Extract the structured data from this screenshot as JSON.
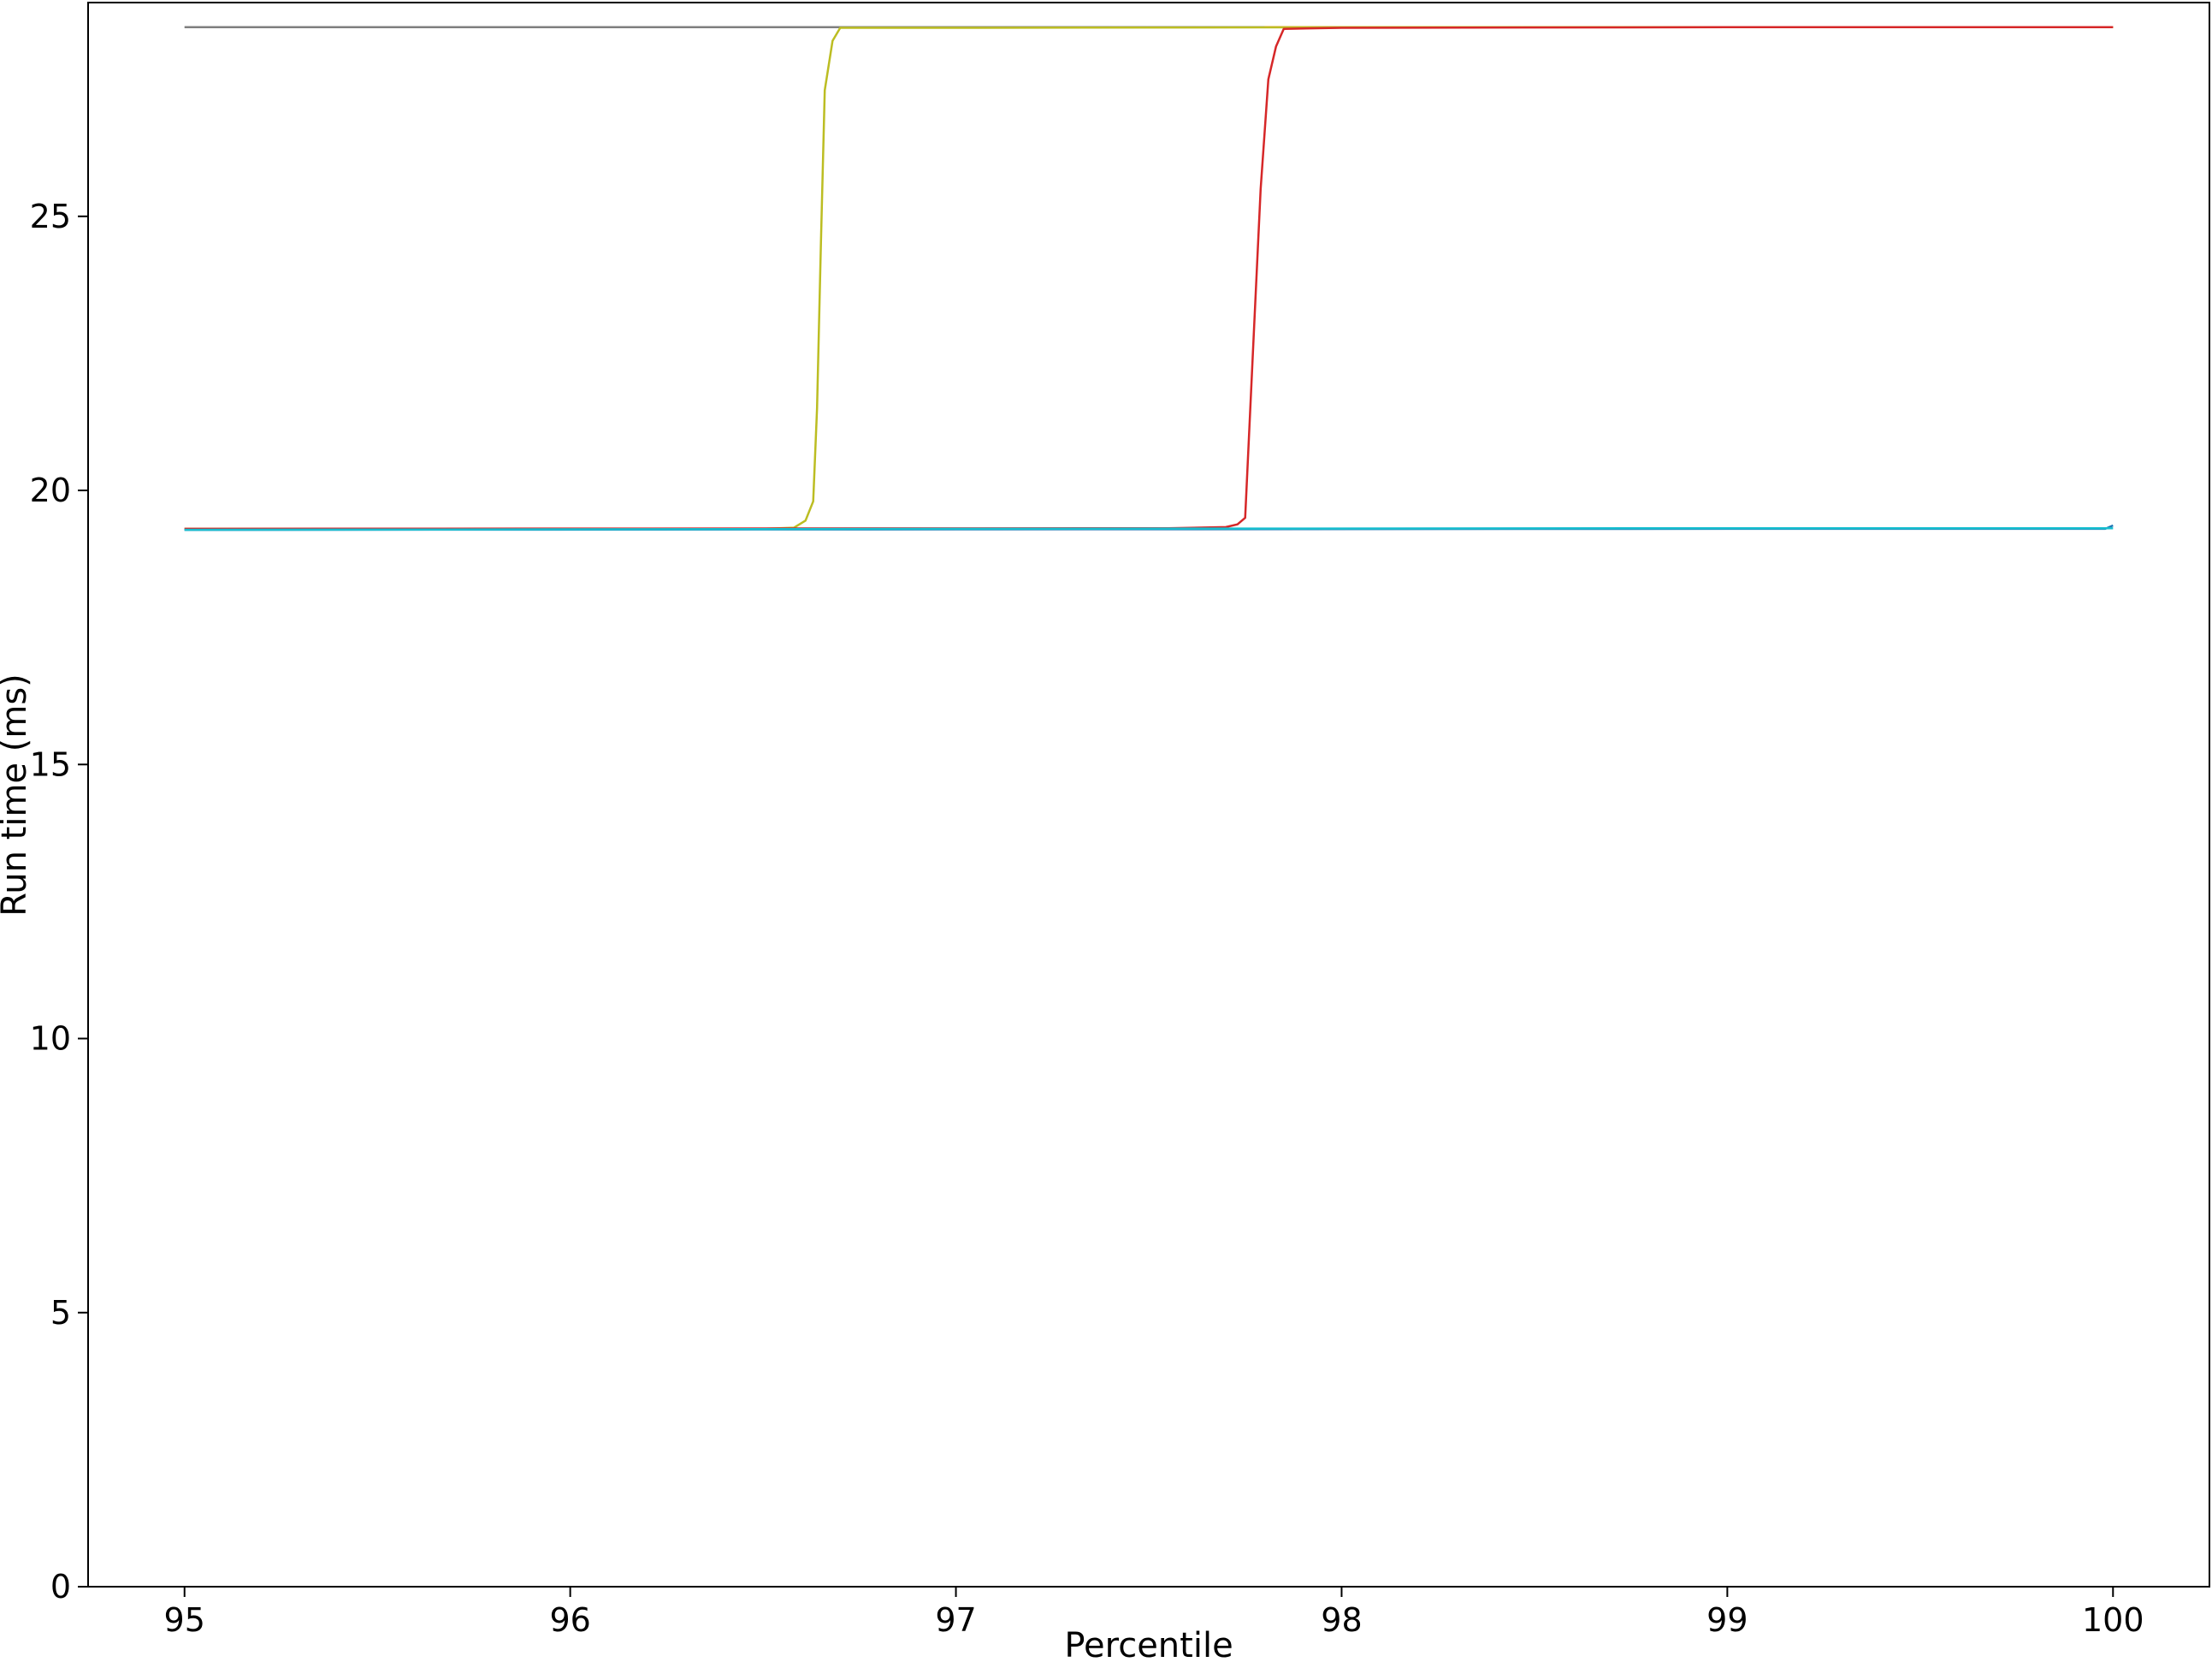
{
  "chart_data": {
    "type": "line",
    "title": "",
    "xlabel": "Percentile",
    "ylabel": "Run time (ms)",
    "xlim": [
      94.75,
      100.25
    ],
    "ylim": [
      0,
      28.9
    ],
    "xticks": [
      95,
      96,
      97,
      98,
      99,
      100
    ],
    "yticks": [
      0,
      5,
      10,
      15,
      20,
      25
    ],
    "grid": false,
    "legend": "none",
    "series": [
      {
        "color": "#7f7f7f",
        "x": [
          95,
          100
        ],
        "y": [
          28.45,
          28.45
        ]
      },
      {
        "color": "#ff7f0e",
        "x": [
          97.8,
          100
        ],
        "y": [
          28.45,
          28.45
        ]
      },
      {
        "color": "#bcbd22",
        "x": [
          95,
          96.5,
          96.58,
          96.61,
          96.63,
          96.64,
          96.65,
          96.66,
          96.68,
          96.7,
          97.0,
          98.0,
          99.0,
          100.0
        ],
        "y": [
          19.3,
          19.3,
          19.32,
          19.45,
          19.8,
          21.5,
          24.5,
          27.3,
          28.2,
          28.44,
          28.44,
          28.45,
          28.45,
          28.45
        ]
      },
      {
        "color": "#d62728",
        "x": [
          95,
          97.55,
          97.7,
          97.73,
          97.75,
          97.77,
          97.79,
          97.81,
          97.83,
          97.85,
          98.0,
          99.0,
          100.0
        ],
        "y": [
          19.3,
          19.31,
          19.33,
          19.38,
          19.5,
          22.5,
          25.5,
          27.5,
          28.1,
          28.42,
          28.44,
          28.45,
          28.45
        ]
      },
      {
        "color": "#1f77b4",
        "x": [
          95,
          97,
          99,
          99.98,
          100
        ],
        "y": [
          19.28,
          19.29,
          19.3,
          19.3,
          19.36
        ]
      },
      {
        "color": "#17becf",
        "x": [
          95,
          97,
          99,
          100
        ],
        "y": [
          19.28,
          19.3,
          19.31,
          19.31
        ]
      }
    ]
  }
}
